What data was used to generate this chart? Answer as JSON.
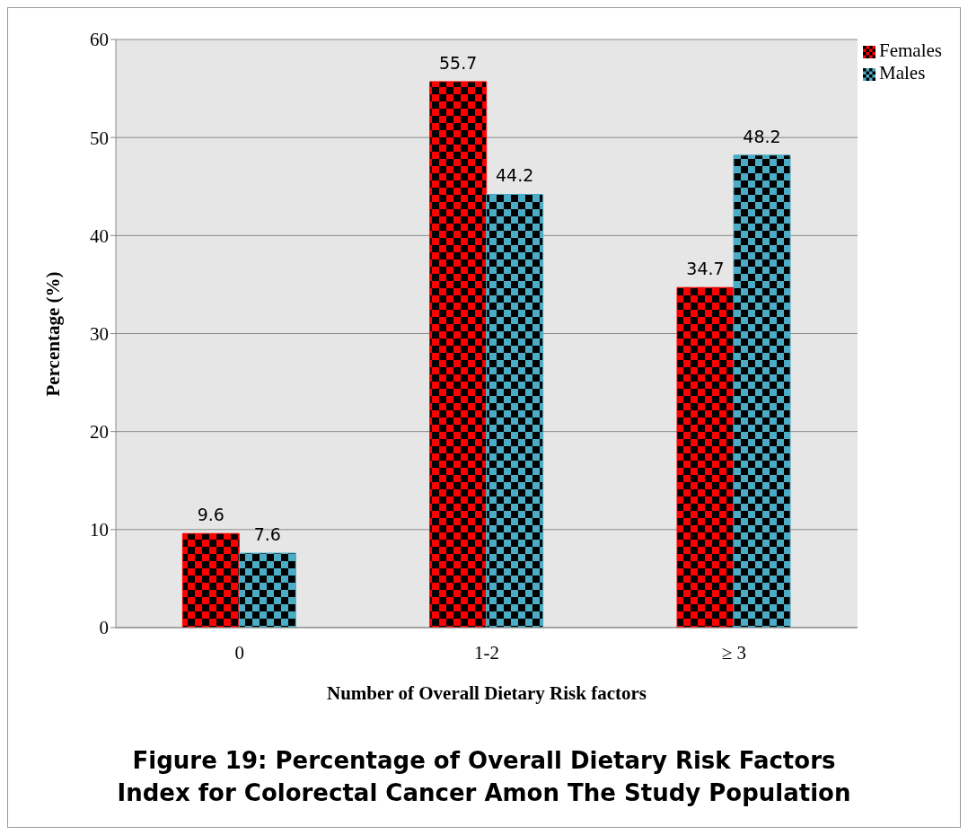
{
  "chart_data": {
    "type": "bar",
    "title": "Figure 19: Percentage of Overall Dietary Risk Factors Index for Colorectal Cancer Amon The Study Population",
    "xlabel": "Number of Overall Dietary Risk factors",
    "ylabel": "Percentage (%)",
    "categories": [
      "0",
      "1-2",
      "≥ 3"
    ],
    "series": [
      {
        "name": "Females",
        "color": "#ff0000",
        "values": [
          9.6,
          55.7,
          34.7
        ]
      },
      {
        "name": "Males",
        "color": "#4bacc6",
        "values": [
          7.6,
          44.2,
          48.2
        ]
      }
    ],
    "ylim": [
      0,
      60
    ],
    "yticks": [
      0,
      10,
      20,
      30,
      40,
      50,
      60
    ],
    "grid": "y",
    "legend": "top right",
    "data_labels": true
  }
}
